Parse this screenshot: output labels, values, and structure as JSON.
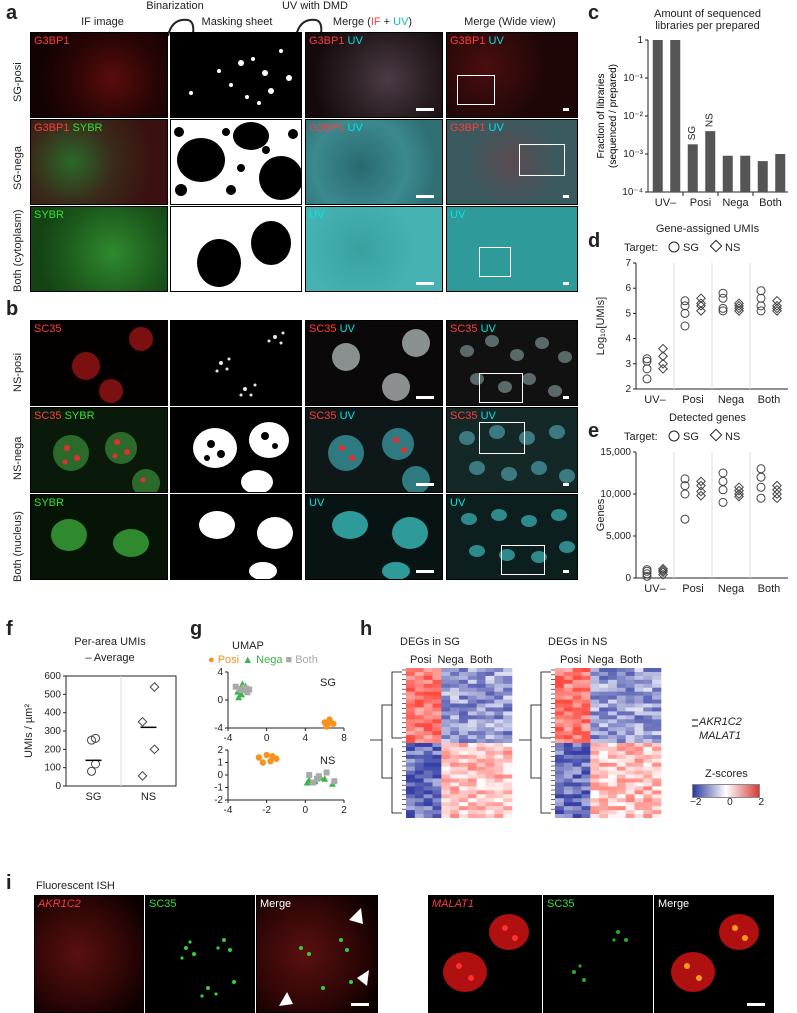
{
  "panel_a": {
    "letter": "a",
    "col_headers": [
      "IF image",
      "Masking sheet",
      "Merge (",
      "Merge (Wide view)"
    ],
    "arrows": [
      "Binarization",
      "UV with DMD"
    ],
    "merge_if": "IF",
    "merge_plus": " + ",
    "merge_uv": "UV",
    "merge_close": ")",
    "rows": [
      "SG-posi",
      "SG-nega",
      "Both (cytoplasm)"
    ],
    "labels": {
      "g3bp1": "G3BP1",
      "sybr": "SYBR",
      "uv": "UV"
    }
  },
  "panel_b": {
    "letter": "b",
    "rows": [
      "NS-posi",
      "NS-nega",
      "Both (nucleus)"
    ],
    "labels": {
      "sc35": "SC35",
      "sybr": "SYBR",
      "uv": "UV"
    }
  },
  "panel_c": {
    "letter": "c",
    "title_1": "Amount of sequenced",
    "title_2": "libraries per prepared",
    "ylabel_1": "Fraction of libraries",
    "ylabel_2": "(sequenced / prepared)",
    "chart_data": {
      "type": "bar",
      "categories": [
        "UV–",
        "UV–",
        "Posi",
        "Posi",
        "Nega",
        "Nega",
        "Both",
        "Both"
      ],
      "group_labels": [
        "UV–",
        "Posi",
        "Nega",
        "Both"
      ],
      "values": [
        1,
        1,
        0.0018,
        0.004,
        0.0009,
        0.0009,
        0.00065,
        0.001
      ],
      "bar_annotations": [
        "SG",
        "NS"
      ],
      "ylim": [
        0.0001,
        1
      ],
      "yscale": "log",
      "ticks": [
        "1",
        "10⁻¹",
        "10⁻²",
        "10⁻³",
        "10⁻⁴"
      ]
    }
  },
  "panel_d": {
    "letter": "d",
    "title": "Gene-assigned UMIs",
    "target_label": "Target:",
    "legend": [
      "SG",
      "NS"
    ],
    "ylabel": "Log₁₀[UMIs]",
    "chart_data": {
      "type": "scatter",
      "groups": [
        "UV–",
        "Posi",
        "Nega",
        "Both"
      ],
      "ylim": [
        2,
        7
      ],
      "yticks": [
        "2",
        "3",
        "4",
        "5",
        "6",
        "7"
      ],
      "series": [
        {
          "name": "SG",
          "values": [
            [
              2.4,
              2.8,
              3.1,
              3.2
            ],
            [
              4.5,
              5.0,
              5.3,
              5.5
            ],
            [
              5.1,
              5.2,
              5.6,
              5.8
            ],
            [
              5.1,
              5.3,
              5.6,
              5.9
            ]
          ]
        },
        {
          "name": "NS",
          "values": [
            [
              2.8,
              3.0,
              3.3,
              3.6
            ],
            [
              5.1,
              5.3,
              5.4,
              5.6
            ],
            [
              5.1,
              5.2,
              5.3,
              5.4
            ],
            [
              5.1,
              5.2,
              5.3,
              5.5
            ]
          ]
        }
      ]
    }
  },
  "panel_e": {
    "letter": "e",
    "title": "Detected genes",
    "target_label": "Target:",
    "legend": [
      "SG",
      "NS"
    ],
    "ylabel": "Genes",
    "chart_data": {
      "type": "scatter",
      "groups": [
        "UV–",
        "Posi",
        "Nega",
        "Both"
      ],
      "ylim": [
        0,
        15000
      ],
      "yticks": [
        "0",
        "5,000",
        "10,000",
        "15,000"
      ],
      "series": [
        {
          "name": "SG",
          "values": [
            [
              200,
              500,
              800,
              1000
            ],
            [
              7000,
              10000,
              11000,
              11800
            ],
            [
              9000,
              10500,
              11500,
              12500
            ],
            [
              9500,
              10800,
              12000,
              13000
            ]
          ]
        },
        {
          "name": "NS",
          "values": [
            [
              400,
              700,
              900,
              1100
            ],
            [
              9800,
              10300,
              11000,
              11500
            ],
            [
              9700,
              10000,
              10400,
              10800
            ],
            [
              9500,
              10000,
              10500,
              11000
            ]
          ]
        }
      ]
    }
  },
  "panel_f": {
    "letter": "f",
    "title": "Per-area UMIs",
    "average_label": "– Average",
    "ylabel": "UMIs / µm²",
    "chart_data": {
      "type": "scatter",
      "categories": [
        "SG",
        "NS"
      ],
      "ylim": [
        0,
        600
      ],
      "yticks": [
        "0",
        "100",
        "200",
        "300",
        "400",
        "500",
        "600"
      ],
      "series": [
        {
          "name": "SG",
          "values": [
            80,
            120,
            250,
            260
          ],
          "average": 140
        },
        {
          "name": "NS",
          "values": [
            55,
            200,
            350,
            540
          ],
          "average": 320
        }
      ]
    }
  },
  "panel_g": {
    "letter": "g",
    "title": "UMAP",
    "legend": [
      "Posi",
      "Nega",
      "Both"
    ],
    "colors": {
      "posi": "#f7931e",
      "nega": "#3cb44b",
      "both": "#a9a9a9"
    },
    "chart_data": [
      {
        "type": "scatter",
        "label": "SG",
        "xlim": [
          -4,
          8
        ],
        "ylim": [
          -4,
          4
        ],
        "xticks": [
          "-4",
          "0",
          "4",
          "8"
        ],
        "yticks": [
          "-4",
          "0",
          "4"
        ],
        "series": [
          {
            "name": "Posi",
            "points": [
              [
                6,
                -3.2
              ],
              [
                6.3,
                -3.5
              ],
              [
                6.6,
                -3.1
              ],
              [
                6.9,
                -3.4
              ],
              [
                6.5,
                -2.8
              ],
              [
                6.2,
                -3.8
              ]
            ]
          },
          {
            "name": "Nega",
            "points": [
              [
                -2.5,
                2.3
              ],
              [
                -2.2,
                2.0
              ],
              [
                -3.0,
                1.2
              ],
              [
                -2.6,
                0.8
              ],
              [
                -1.9,
                1.6
              ],
              [
                -2.9,
                0.4
              ]
            ]
          },
          {
            "name": "Both",
            "points": [
              [
                -2.8,
                1.5
              ],
              [
                -2.3,
                1.8
              ],
              [
                -2.0,
                1.1
              ],
              [
                -3.2,
                1.9
              ],
              [
                -1.8,
                1.5
              ],
              [
                -2.5,
                1.4
              ]
            ]
          }
        ]
      },
      {
        "type": "scatter",
        "label": "NS",
        "xlim": [
          -4,
          2
        ],
        "ylim": [
          -2,
          2
        ],
        "xticks": [
          "-4",
          "-2",
          "0",
          "2"
        ],
        "yticks": [
          "-2",
          "-1",
          "0",
          "1",
          "2"
        ],
        "series": [
          {
            "name": "Posi",
            "points": [
              [
                -2.4,
                1.4
              ],
              [
                -2.0,
                1.6
              ],
              [
                -1.7,
                1.5
              ],
              [
                -1.5,
                1.3
              ],
              [
                -2.2,
                1.0
              ],
              [
                -1.8,
                1.1
              ]
            ]
          },
          {
            "name": "Nega",
            "points": [
              [
                0.2,
                -0.4
              ],
              [
                0.5,
                -0.5
              ],
              [
                1.0,
                -0.3
              ],
              [
                1.4,
                -0.7
              ],
              [
                0.8,
                -0.2
              ],
              [
                0.1,
                -0.6
              ]
            ]
          },
          {
            "name": "Both",
            "points": [
              [
                0.2,
                0.0
              ],
              [
                0.7,
                -0.1
              ],
              [
                1.1,
                0.2
              ],
              [
                1.5,
                -0.5
              ],
              [
                0.6,
                -0.3
              ],
              [
                0.4,
                -0.6
              ]
            ]
          }
        ]
      }
    ]
  },
  "panel_h": {
    "letter": "h",
    "titles": [
      "DEGs in SG",
      "DEGs in NS"
    ],
    "col_labels": [
      "Posi",
      "Nega",
      "Both"
    ],
    "genes": [
      "AKR1C2",
      "MALAT1"
    ],
    "scale_title": "Z-scores",
    "scale_ticks": [
      "−2",
      "0",
      "2"
    ]
  },
  "panel_i": {
    "letter": "i",
    "title": "Fluorescent ISH",
    "left": [
      "AKR1C2",
      "SC35",
      "Merge"
    ],
    "right": [
      "MALAT1",
      "SC35",
      "Merge"
    ]
  }
}
